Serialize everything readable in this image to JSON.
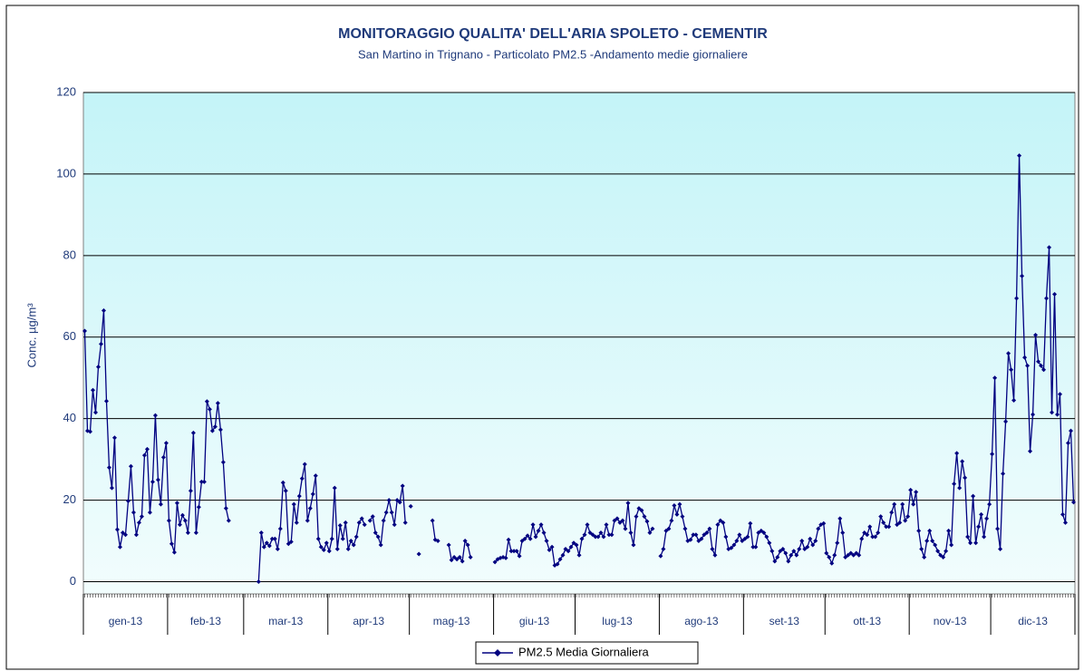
{
  "chart_data": {
    "type": "line",
    "title": "MONITORAGGIO QUALITA' DELL'ARIA SPOLETO - CEMENTIR",
    "subtitle": "San Martino in Trignano - Particolato PM2.5 -Andamento medie giornaliere",
    "y_label": "Conc.  µg/m³",
    "categories": [
      "gen-13",
      "feb-13",
      "mar-13",
      "apr-13",
      "mag-13",
      "giu-13",
      "lug-13",
      "ago-13",
      "set-13",
      "ott-13",
      "nov-13",
      "dic-13"
    ],
    "ylim": [
      -3,
      120
    ],
    "yticks": [
      0,
      20,
      40,
      60,
      80,
      100,
      120
    ],
    "grid": true,
    "legend": "bottom",
    "series": [
      {
        "name": "PM2.5 Media Giornaliera",
        "color": "#000080",
        "values": [
          [
            61.5,
            37,
            36.8,
            47,
            41.5,
            52.7,
            58.3,
            66.5,
            44.3,
            28,
            23,
            35.3,
            12.8,
            8.5,
            12,
            11.5,
            19.8,
            28.3,
            17,
            11.5,
            14.5,
            16,
            31,
            32.5,
            17,
            24.5,
            40.8,
            25,
            19,
            30.5,
            34
          ],
          [
            15,
            9.3,
            7.2,
            19.3,
            14,
            16.3,
            15,
            12,
            22.3,
            36.5,
            12,
            18.3,
            24.5,
            24.5,
            44.2,
            42.3,
            37,
            38,
            43.8,
            37.3,
            29.3,
            18,
            15,
            null,
            null,
            null,
            null,
            null
          ],
          [
            null,
            null,
            null,
            null,
            null,
            0,
            12,
            8.5,
            9.5,
            8.8,
            10.5,
            10.5,
            8,
            13,
            24.3,
            22.3,
            9.3,
            9.8,
            19,
            14.5,
            21,
            25.3,
            28.8,
            15,
            18,
            21.5,
            26,
            10.5,
            8.5,
            7.8,
            9.5
          ],
          [
            7.5,
            10.5,
            23,
            8,
            13.8,
            10.5,
            14.5,
            8,
            10,
            9,
            11,
            14.5,
            15.5,
            14,
            null,
            15,
            16,
            12,
            11,
            9,
            15,
            17,
            20,
            17,
            14,
            20,
            19.5,
            23.5,
            14.5,
            null
          ],
          [
            18.5,
            null,
            null,
            6.8,
            null,
            null,
            null,
            null,
            15,
            10.3,
            10,
            null,
            null,
            null,
            9,
            5.3,
            6,
            5.5,
            6,
            5,
            10,
            9,
            6,
            null,
            null,
            null,
            null,
            null,
            null,
            null,
            null
          ],
          [
            4.8,
            5.5,
            5.8,
            6,
            5.8,
            10.3,
            7.5,
            7.5,
            7.5,
            6.3,
            10,
            10.5,
            11.3,
            10.5,
            14,
            11,
            12.5,
            14,
            12,
            10,
            7.8,
            8.5,
            4,
            4.3,
            5.5,
            6.5,
            8,
            7.5,
            8.5,
            9.5
          ],
          [
            9,
            6.5,
            10.5,
            11.5,
            14,
            12,
            11.5,
            11,
            11,
            12,
            11,
            14,
            11.5,
            11.5,
            15,
            15.5,
            14.5,
            15,
            13,
            19.3,
            12,
            9,
            16,
            18,
            17.5,
            16,
            14.8,
            12,
            13,
            null,
            null
          ],
          [
            6.3,
            8,
            12.5,
            13,
            15,
            18.7,
            16.5,
            19,
            16,
            13,
            10,
            10.3,
            11.5,
            11.5,
            10,
            10.5,
            11.5,
            12,
            13,
            8,
            6.5,
            14,
            15,
            14.5,
            11,
            8,
            8.3,
            9,
            10,
            11.5,
            10
          ],
          [
            10.5,
            11,
            14.3,
            8.5,
            8.5,
            12,
            12.5,
            12,
            11,
            9.5,
            7.5,
            5,
            6,
            7.5,
            8,
            7,
            5,
            6.5,
            7.5,
            6.5,
            8,
            10,
            8,
            8.5,
            10.5,
            9,
            10,
            13,
            14,
            14.3
          ],
          [
            7,
            6,
            4.5,
            6.5,
            9.5,
            15.5,
            12,
            6,
            6.5,
            7,
            6.5,
            7,
            6.5,
            10.5,
            12,
            11.5,
            13.5,
            11,
            11,
            12,
            16,
            14.5,
            13.5,
            13.5,
            17,
            19,
            14,
            14.5,
            19,
            15,
            16
          ],
          [
            22.5,
            19,
            22,
            12.5,
            8,
            6,
            10,
            12.5,
            10,
            9,
            7.5,
            6.5,
            6,
            7.5,
            12.5,
            9,
            24,
            31.5,
            23,
            29.5,
            25.5,
            11,
            9.5,
            21,
            9.5,
            13.5,
            16.5,
            11,
            15.5,
            19
          ],
          [
            31.3,
            50,
            13,
            8,
            26.5,
            39.3,
            56,
            52,
            44.5,
            69.5,
            104.5,
            75,
            55,
            53,
            32,
            41,
            60.5,
            54,
            53,
            52,
            69.5,
            82,
            41.5,
            70.5,
            41,
            46,
            16.5,
            14.5,
            34,
            37,
            19.5
          ]
        ]
      }
    ]
  }
}
